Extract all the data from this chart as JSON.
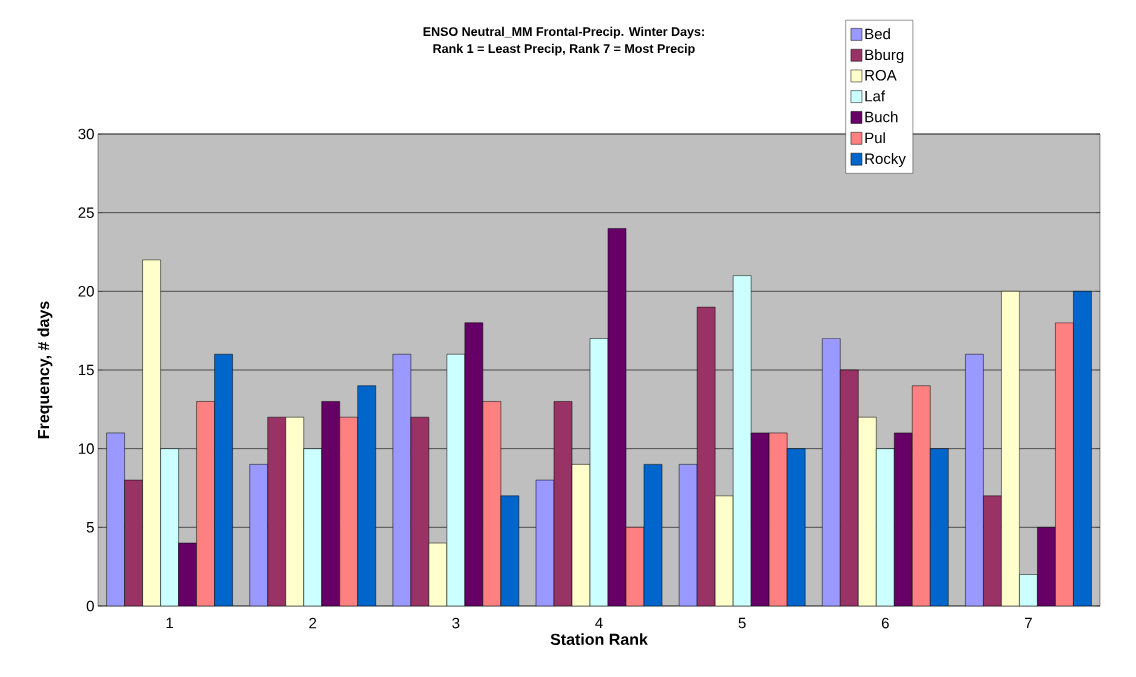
{
  "chart_data": {
    "type": "bar",
    "title": "ENSO Neutral_MM Frontal-Precip. Winter Days:\nRank 1 = Least Precip, Rank 7 = Most Precip",
    "xlabel": "Station Rank",
    "ylabel": "Frequency, # days",
    "categories": [
      "1",
      "2",
      "3",
      "4",
      "5",
      "6",
      "7"
    ],
    "series": [
      {
        "name": "Bed",
        "color": "#9999ff",
        "values": [
          11,
          9,
          16,
          8,
          9,
          17,
          16
        ]
      },
      {
        "name": "Bburg",
        "color": "#993366",
        "values": [
          8,
          12,
          12,
          13,
          19,
          15,
          7
        ]
      },
      {
        "name": "ROA",
        "color": "#ffffcc",
        "values": [
          22,
          12,
          4,
          9,
          7,
          12,
          20
        ]
      },
      {
        "name": "Laf",
        "color": "#ccffff",
        "values": [
          10,
          10,
          16,
          17,
          21,
          10,
          2
        ]
      },
      {
        "name": "Buch",
        "color": "#660066",
        "values": [
          4,
          13,
          18,
          24,
          11,
          11,
          5
        ]
      },
      {
        "name": "Pul",
        "color": "#ff8080",
        "values": [
          13,
          12,
          13,
          5,
          11,
          14,
          18
        ]
      },
      {
        "name": "Rocky",
        "color": "#0066cc",
        "values": [
          16,
          14,
          7,
          9,
          10,
          10,
          20
        ]
      }
    ],
    "ylim": [
      0,
      30
    ],
    "yticks": [
      0,
      5,
      10,
      15,
      20,
      25,
      30
    ],
    "grid": "y",
    "legend": "top right"
  }
}
